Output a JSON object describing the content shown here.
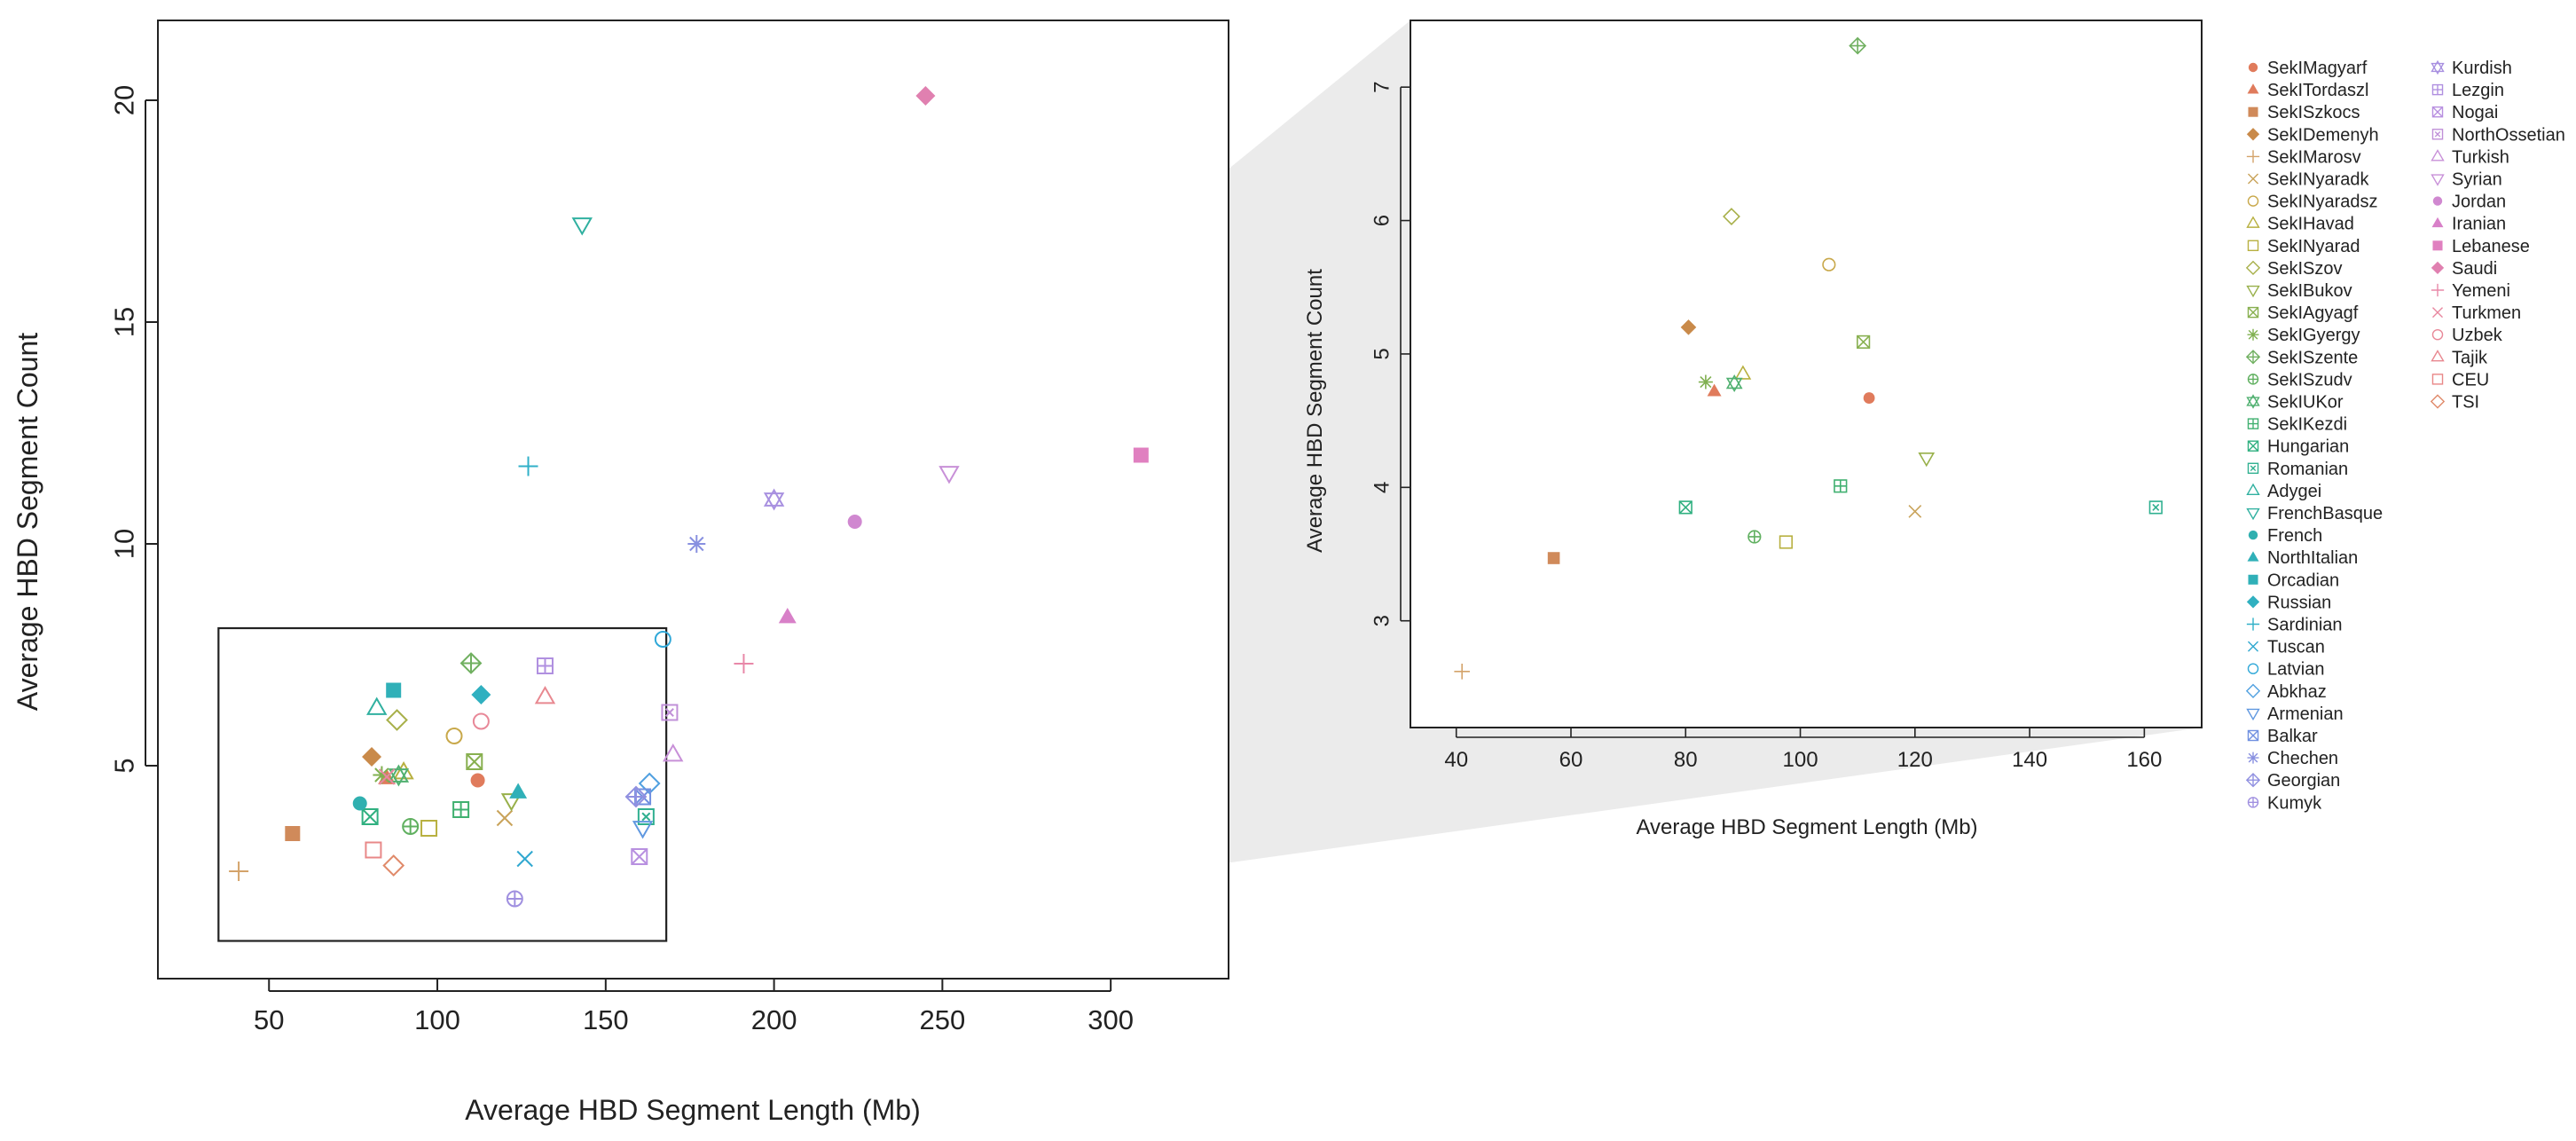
{
  "chart_data": [
    {
      "type": "scatter",
      "panel": "main",
      "xlabel": "Average HBD Segment Length (Mb)",
      "ylabel": "Average HBD Segment Count",
      "xlim": [
        17,
        335
      ],
      "ylim": [
        0.2,
        21.8
      ],
      "xticks": [
        50,
        100,
        150,
        200,
        250,
        300
      ],
      "yticks": [
        5,
        10,
        15,
        20
      ],
      "zoom_box": {
        "x": [
          35,
          168
        ],
        "y": [
          1.05,
          8.1
        ]
      }
    },
    {
      "type": "scatter",
      "panel": "zoom",
      "xlabel": "Average HBD Segment Length (Mb)",
      "ylabel": "Average HBD Segment Count",
      "xlim": [
        32,
        170
      ],
      "ylim": [
        2.2,
        7.5
      ],
      "xticks": [
        40,
        60,
        80,
        100,
        120,
        140,
        160
      ],
      "yticks": [
        3,
        4,
        5,
        6,
        7
      ]
    }
  ],
  "populations": [
    {
      "name": "SekIMagyarf",
      "color": "#e07b5c",
      "marker": "circle-filled",
      "x": 112,
      "y": 4.67
    },
    {
      "name": "SekITordaszl",
      "color": "#e07b5c",
      "marker": "triangle-filled",
      "x": 85,
      "y": 4.72
    },
    {
      "name": "SekISzkocs",
      "color": "#d08a5a",
      "marker": "square-filled",
      "x": 57,
      "y": 3.47
    },
    {
      "name": "SekIDemenyh",
      "color": "#c98a4a",
      "marker": "diamond-filled",
      "x": 80.5,
      "y": 5.2
    },
    {
      "name": "SekIMarosv",
      "color": "#d4a36a",
      "marker": "plus",
      "x": 41,
      "y": 2.62
    },
    {
      "name": "SekINyaradk",
      "color": "#c9a35a",
      "marker": "cross",
      "x": 120,
      "y": 3.82
    },
    {
      "name": "SekINyaradsz",
      "color": "#c8a84a",
      "marker": "circle",
      "x": 105,
      "y": 5.67
    },
    {
      "name": "SekIHavad",
      "color": "#b8b040",
      "marker": "triangle",
      "x": 90,
      "y": 4.85
    },
    {
      "name": "SekINyarad",
      "color": "#b8b040",
      "marker": "square",
      "x": 97.5,
      "y": 3.59
    },
    {
      "name": "SekISzov",
      "color": "#a8b04a",
      "marker": "diamond",
      "x": 88,
      "y": 6.03
    },
    {
      "name": "SekIBukov",
      "color": "#98b04a",
      "marker": "triangle-down",
      "x": 122,
      "y": 4.22
    },
    {
      "name": "SekIAgyagf",
      "color": "#88b050",
      "marker": "square-x",
      "x": 111,
      "y": 5.09
    },
    {
      "name": "SekIGyergy",
      "color": "#80b050",
      "marker": "asterisk",
      "x": 83.5,
      "y": 4.79
    },
    {
      "name": "SekISzente",
      "color": "#70b060",
      "marker": "diamond-plus",
      "x": 110,
      "y": 7.31
    },
    {
      "name": "SekISzudv",
      "color": "#60b060",
      "marker": "circle-plus",
      "x": 92,
      "y": 3.63
    },
    {
      "name": "SekIUKor",
      "color": "#50b070",
      "marker": "star-david",
      "x": 88.5,
      "y": 4.78
    },
    {
      "name": "SekIKezdi",
      "color": "#40b070",
      "marker": "square-plus",
      "x": 107,
      "y": 4.01
    },
    {
      "name": "Hungarian",
      "color": "#30b080",
      "marker": "square-x",
      "x": 80,
      "y": 3.85
    },
    {
      "name": "Romanian",
      "color": "#30b090",
      "marker": "square-box-x",
      "x": 162,
      "y": 3.85
    },
    {
      "name": "Adygei",
      "color": "#30b0a0",
      "marker": "triangle",
      "x": 82,
      "y": 6.3
    },
    {
      "name": "FrenchBasque",
      "color": "#30b0a0",
      "marker": "triangle-down",
      "x": 143,
      "y": 17.2
    },
    {
      "name": "French",
      "color": "#30b0b0",
      "marker": "circle-filled",
      "x": 77,
      "y": 4.15
    },
    {
      "name": "NorthItalian",
      "color": "#30b0b8",
      "marker": "triangle-filled",
      "x": 124,
      "y": 4.4
    },
    {
      "name": "Orcadian",
      "color": "#30b0b8",
      "marker": "square-filled",
      "x": 87,
      "y": 6.7
    },
    {
      "name": "Russian",
      "color": "#30b0c0",
      "marker": "diamond-filled",
      "x": 113,
      "y": 6.6
    },
    {
      "name": "Sardinian",
      "color": "#30b0c8",
      "marker": "plus",
      "x": 127,
      "y": 11.75
    },
    {
      "name": "Tuscan",
      "color": "#30a8d0",
      "marker": "cross",
      "x": 126,
      "y": 2.9
    },
    {
      "name": "Latvian",
      "color": "#30a8d8",
      "marker": "circle",
      "x": 167,
      "y": 7.85
    },
    {
      "name": "Abkhaz",
      "color": "#50a0e0",
      "marker": "diamond",
      "x": 163,
      "y": 4.6
    },
    {
      "name": "Armenian",
      "color": "#6098e0",
      "marker": "triangle-down",
      "x": 161,
      "y": 3.6
    },
    {
      "name": "Balkar",
      "color": "#7090e0",
      "marker": "square-x",
      "x": 161,
      "y": 4.3
    },
    {
      "name": "Chechen",
      "color": "#8890e0",
      "marker": "asterisk",
      "x": 177,
      "y": 10
    },
    {
      "name": "Georgian",
      "color": "#9090e0",
      "marker": "diamond-plus",
      "x": 159,
      "y": 4.3
    },
    {
      "name": "Kumyk",
      "color": "#a090e0",
      "marker": "circle-plus",
      "x": 123,
      "y": 2.0
    },
    {
      "name": "Kurdish",
      "color": "#a890e0",
      "marker": "star-david",
      "x": 200,
      "y": 11
    },
    {
      "name": "Lezgin",
      "color": "#b090e0",
      "marker": "square-plus",
      "x": 132,
      "y": 7.25
    },
    {
      "name": "Nogai",
      "color": "#b890e0",
      "marker": "square-x",
      "x": 160,
      "y": 2.95
    },
    {
      "name": "NorthOssetian",
      "color": "#c090d8",
      "marker": "square-box-x",
      "x": 169,
      "y": 6.2
    },
    {
      "name": "Turkish",
      "color": "#c890d8",
      "marker": "triangle",
      "x": 170,
      "y": 5.25
    },
    {
      "name": "Syrian",
      "color": "#c890d8",
      "marker": "triangle-down",
      "x": 252,
      "y": 11.6
    },
    {
      "name": "Jordan",
      "color": "#d088d0",
      "marker": "circle-filled",
      "x": 224,
      "y": 10.5
    },
    {
      "name": "Iranian",
      "color": "#d880c8",
      "marker": "triangle-filled",
      "x": 204,
      "y": 8.35
    },
    {
      "name": "Lebanese",
      "color": "#e080c0",
      "marker": "square-filled",
      "x": 309,
      "y": 12
    },
    {
      "name": "Saudi",
      "color": "#e080b0",
      "marker": "diamond-filled",
      "x": 245,
      "y": 20.1
    },
    {
      "name": "Yemeni",
      "color": "#e888a8",
      "marker": "plus",
      "x": 191,
      "y": 7.3
    },
    {
      "name": "Turkmen",
      "color": "#e888a0",
      "marker": "cross",
      "x": 85,
      "y": 4.75
    },
    {
      "name": "Uzbek",
      "color": "#e88898",
      "marker": "circle",
      "x": 113,
      "y": 6.0
    },
    {
      "name": "Tajik",
      "color": "#e88890",
      "marker": "triangle",
      "x": 132,
      "y": 6.55
    },
    {
      "name": "CEU",
      "color": "#e88888",
      "marker": "square",
      "x": 81,
      "y": 3.1
    },
    {
      "name": "TSI",
      "color": "#e08a6a",
      "marker": "diamond",
      "x": 87,
      "y": 2.75
    }
  ],
  "zoom_points": [
    {
      "name": "SekISzente",
      "color": "#70b060",
      "marker": "diamond-plus",
      "x": 110,
      "y": 7.31
    },
    {
      "name": "SekISzov",
      "color": "#a8b04a",
      "marker": "diamond",
      "x": 88,
      "y": 6.03
    },
    {
      "name": "SekINyaradsz",
      "color": "#c8a84a",
      "marker": "circle",
      "x": 105,
      "y": 5.67
    },
    {
      "name": "SekIDemenyh",
      "color": "#c98a4a",
      "marker": "diamond-filled",
      "x": 80.5,
      "y": 5.2
    },
    {
      "name": "SekIAgyagf",
      "color": "#88b050",
      "marker": "square-x",
      "x": 111,
      "y": 5.09
    },
    {
      "name": "SekIHavad",
      "color": "#b8b040",
      "marker": "triangle",
      "x": 90,
      "y": 4.85
    },
    {
      "name": "SekIGyergy",
      "color": "#80b050",
      "marker": "asterisk",
      "x": 83.5,
      "y": 4.79
    },
    {
      "name": "SekIUKor",
      "color": "#50b070",
      "marker": "star-david",
      "x": 88.5,
      "y": 4.78
    },
    {
      "name": "SekITordaszl",
      "color": "#e07b5c",
      "marker": "triangle-filled",
      "x": 85,
      "y": 4.72
    },
    {
      "name": "SekIMagyarf",
      "color": "#e07b5c",
      "marker": "circle-filled",
      "x": 112,
      "y": 4.67
    },
    {
      "name": "SekIBukov",
      "color": "#98b04a",
      "marker": "triangle-down",
      "x": 122,
      "y": 4.22
    },
    {
      "name": "SekIKezdi",
      "color": "#40b070",
      "marker": "square-plus",
      "x": 107,
      "y": 4.01
    },
    {
      "name": "Hungarian",
      "color": "#30b080",
      "marker": "square-x",
      "x": 80,
      "y": 3.85
    },
    {
      "name": "Romanian",
      "color": "#30b090",
      "marker": "square-box-x",
      "x": 162,
      "y": 3.85
    },
    {
      "name": "SekINyaradk",
      "color": "#c9a35a",
      "marker": "cross",
      "x": 120,
      "y": 3.82
    },
    {
      "name": "SekISzudv",
      "color": "#60b060",
      "marker": "circle-plus",
      "x": 92,
      "y": 3.63
    },
    {
      "name": "SekINyarad",
      "color": "#b8b040",
      "marker": "square",
      "x": 97.5,
      "y": 3.59
    },
    {
      "name": "SekISzkocs",
      "color": "#d08a5a",
      "marker": "square-filled",
      "x": 57,
      "y": 3.47
    },
    {
      "name": "SekIMarosv",
      "color": "#d4a36a",
      "marker": "plus",
      "x": 41,
      "y": 2.62
    }
  ]
}
